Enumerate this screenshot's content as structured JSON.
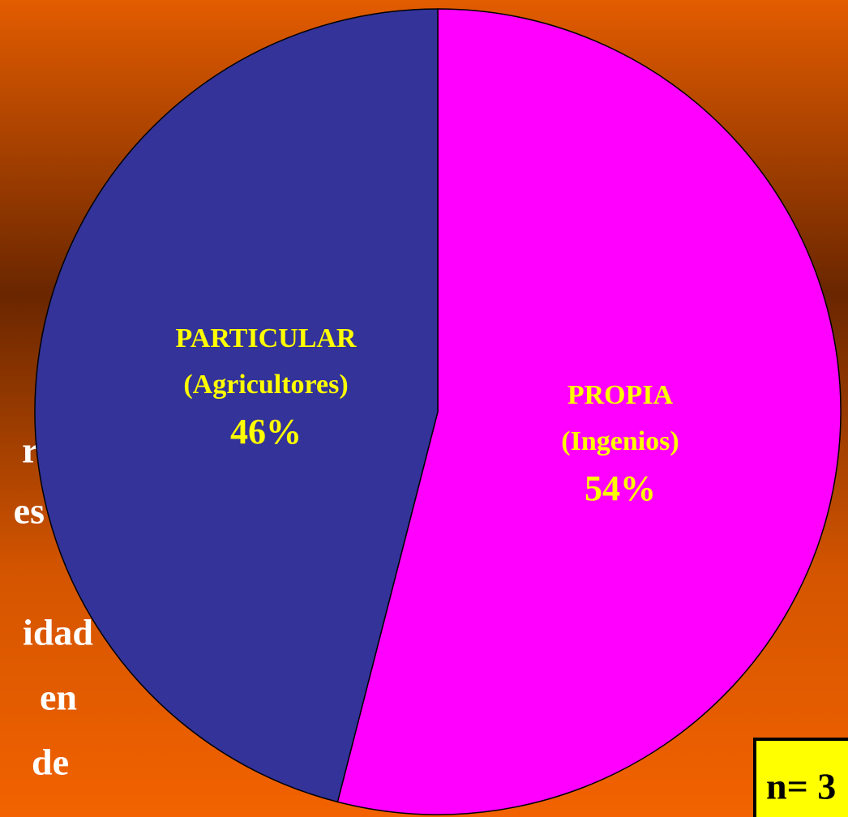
{
  "chart_data": {
    "type": "pie",
    "categories": [
      "PROPIA",
      "PARTICULAR"
    ],
    "subcategories": [
      "(Ingenios)",
      "(Agricultores)"
    ],
    "values": [
      54,
      46
    ],
    "value_labels": [
      "54%",
      "46%"
    ],
    "colors": [
      "#ff00ff",
      "#333399"
    ],
    "background_text": [
      "res",
      "es",
      "idad",
      "en",
      "de"
    ],
    "sample_note": "n= 3"
  }
}
